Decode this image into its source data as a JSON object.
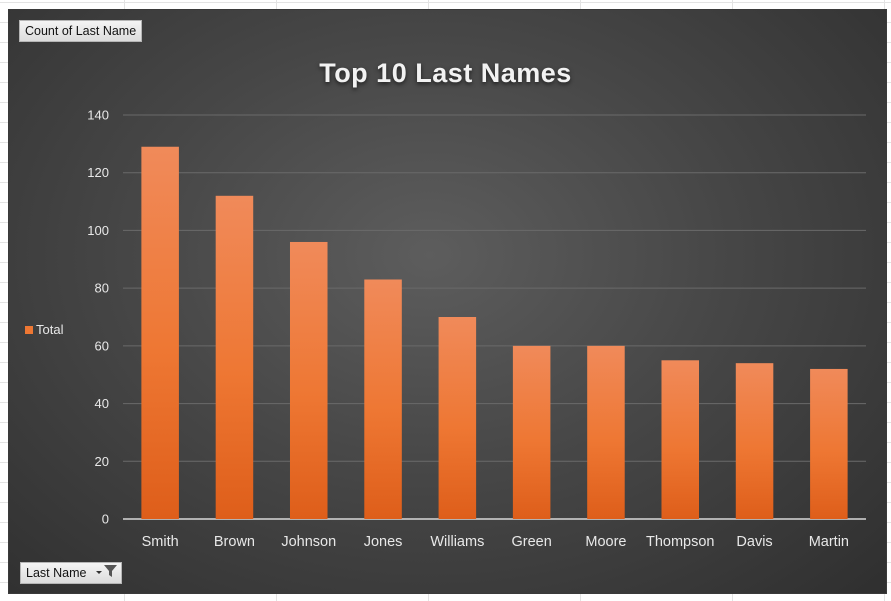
{
  "field_buttons": {
    "values_label": "Count of Last Name",
    "axis_label": "Last Name"
  },
  "legend": {
    "label": "Total",
    "color": "#ee7733"
  },
  "chart_data": {
    "type": "bar",
    "title": "Top 10 Last Names",
    "categories": [
      "Smith",
      "Brown",
      "Johnson",
      "Jones",
      "Williams",
      "Green",
      "Moore",
      "Thompson",
      "Davis",
      "Martin"
    ],
    "series": [
      {
        "name": "Total",
        "values": [
          129,
          112,
          96,
          83,
          70,
          60,
          60,
          55,
          54,
          52
        ]
      }
    ],
    "ylim": [
      0,
      140
    ],
    "yticks": [
      0,
      20,
      40,
      60,
      80,
      100,
      120,
      140
    ],
    "grid": true,
    "legend_position": "left",
    "colors": {
      "bar": "#ee7733",
      "background": "#474747",
      "text": "#e8e8e8"
    }
  }
}
